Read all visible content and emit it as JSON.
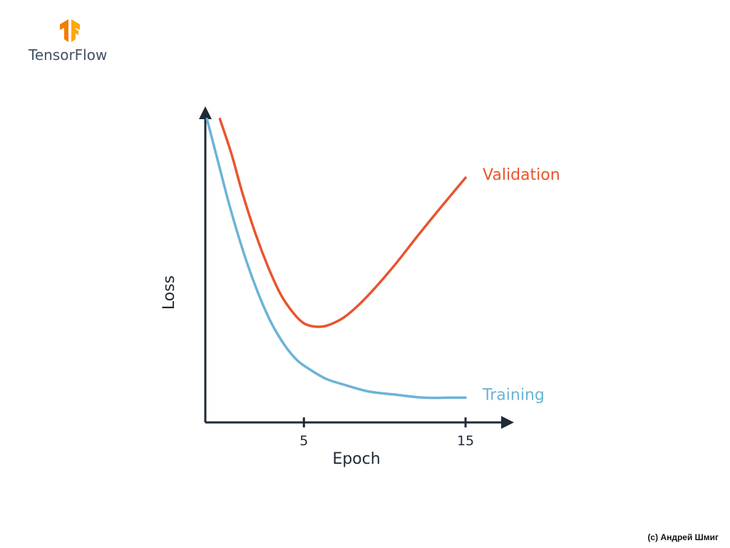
{
  "brand": {
    "name": "TensorFlow",
    "logo_icon": "tensorflow-logo-icon",
    "logo_color": "#F57C00"
  },
  "copyright": "(c) Андрей Шмиг",
  "chart_data": {
    "type": "line",
    "xlabel": "Epoch",
    "ylabel": "Loss",
    "xlim": [
      -1.1,
      17.6
    ],
    "ylim": [
      0,
      100
    ],
    "xticks": [
      5,
      15
    ],
    "xtick_labels": [
      "5",
      "15"
    ],
    "yticks": [],
    "grid": false,
    "legend": "inline-right",
    "series": [
      {
        "name": "Validation",
        "color": "#E8552F",
        "x": [
          -0.2,
          0.5,
          1.2,
          2.0,
          2.8,
          3.6,
          4.4,
          5.0,
          5.6,
          6.2,
          6.8,
          7.5,
          8.4,
          9.5,
          10.8,
          12.0,
          13.4,
          15.0
        ],
        "y": [
          98,
          87,
          74,
          61,
          50,
          41,
          35,
          32,
          31,
          31,
          32,
          34,
          38,
          44,
          52,
          60,
          69,
          79
        ]
      },
      {
        "name": "Training",
        "color": "#6BB3D6",
        "x": [
          -1.0,
          -0.3,
          0.4,
          1.2,
          2.0,
          2.9,
          3.8,
          4.6,
          5.4,
          6.4,
          7.6,
          9.0,
          10.6,
          12.4,
          14.0,
          15.0
        ],
        "y": [
          98,
          84,
          70,
          56,
          44,
          33,
          25,
          20,
          17,
          14,
          12,
          10,
          9,
          8,
          8,
          8
        ]
      }
    ]
  }
}
